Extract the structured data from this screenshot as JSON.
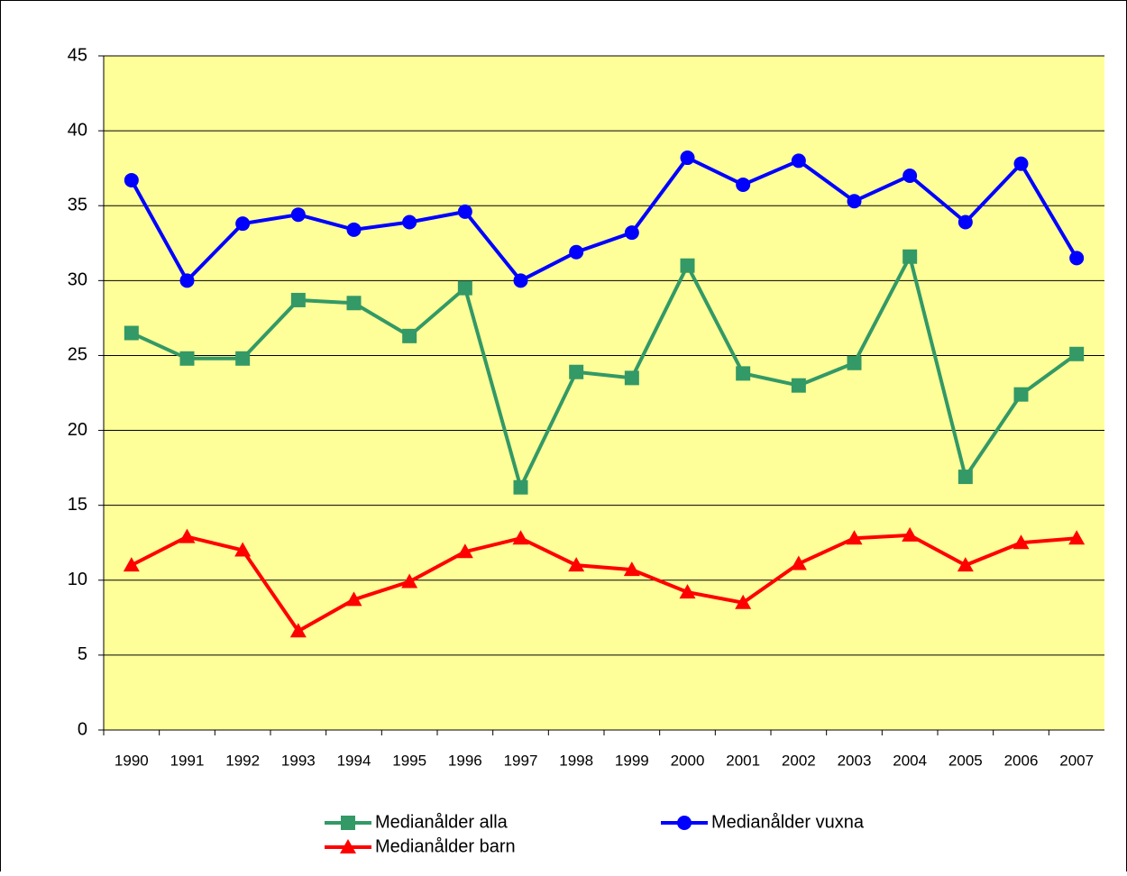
{
  "chart_data": {
    "type": "line",
    "categories": [
      "1990",
      "1991",
      "1992",
      "1993",
      "1994",
      "1995",
      "1996",
      "1997",
      "1998",
      "1999",
      "2000",
      "2001",
      "2002",
      "2003",
      "2004",
      "2005",
      "2006",
      "2007"
    ],
    "series": [
      {
        "name": "Medianålder alla",
        "color": "#339966",
        "marker": "square",
        "values": [
          26.5,
          24.8,
          24.8,
          28.7,
          28.5,
          26.3,
          29.5,
          16.2,
          23.9,
          23.5,
          31.0,
          23.8,
          23.0,
          24.5,
          31.6,
          16.9,
          22.4,
          25.1
        ]
      },
      {
        "name": "Medianålder vuxna",
        "color": "#0000ff",
        "marker": "circle",
        "values": [
          36.7,
          30.0,
          33.8,
          34.4,
          33.4,
          33.9,
          34.6,
          30.0,
          31.9,
          33.2,
          38.2,
          36.4,
          38.0,
          35.3,
          37.0,
          33.9,
          37.8,
          31.5
        ]
      },
      {
        "name": "Medianålder barn",
        "color": "#ff0000",
        "marker": "triangle",
        "values": [
          11.0,
          12.9,
          12.0,
          6.6,
          8.7,
          9.9,
          11.9,
          12.8,
          11.0,
          10.7,
          9.2,
          8.5,
          11.1,
          12.8,
          13.0,
          11.0,
          12.5,
          12.8
        ]
      }
    ],
    "ylim": [
      0,
      45
    ],
    "yticks": [
      0,
      5,
      10,
      15,
      20,
      25,
      30,
      35,
      40,
      45
    ],
    "grid": true,
    "plot_background": "#ffff99",
    "legend": "bottom"
  }
}
